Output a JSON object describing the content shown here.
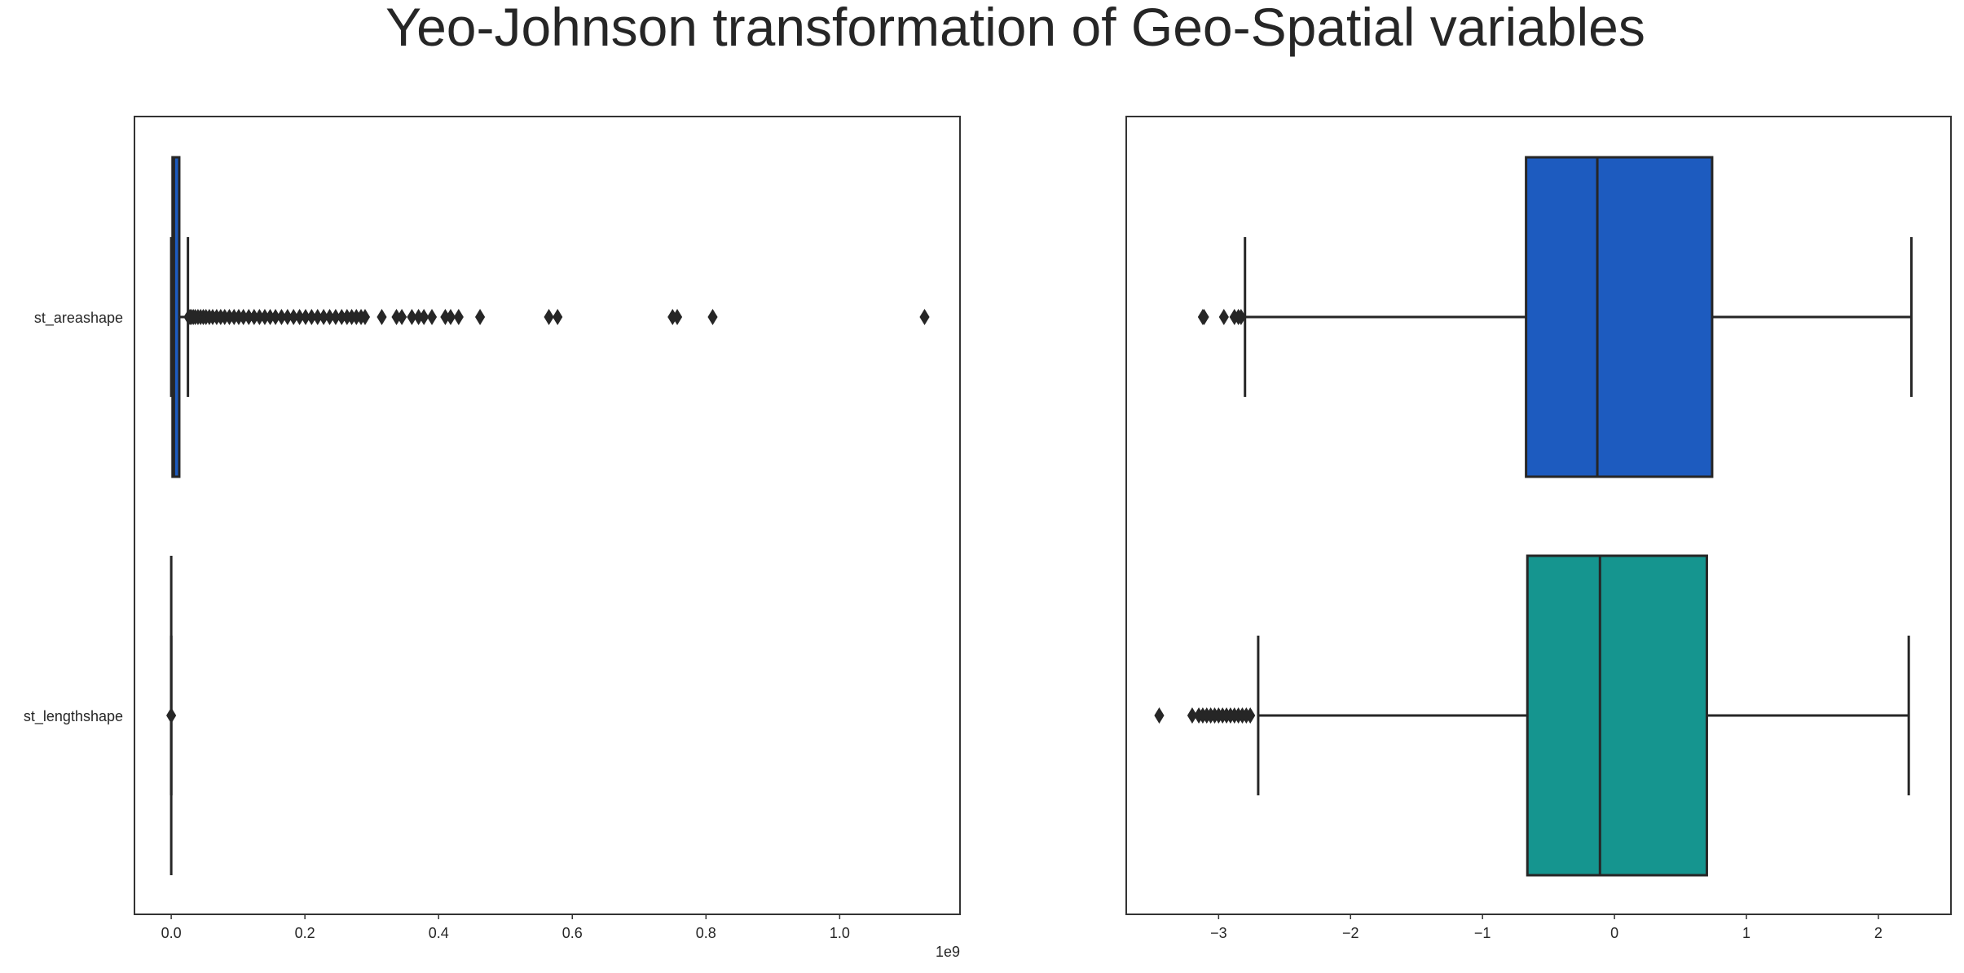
{
  "title": "Yeo-Johnson transformation of Geo-Spatial variables",
  "colors": {
    "box_blue": "#1d5bbf",
    "box_teal": "#15958f",
    "ink": "#262626",
    "frame": "#333333"
  },
  "chart_data": [
    {
      "type": "boxplot",
      "orientation": "horizontal",
      "categories": [
        "st_areashape",
        "st_lengthshape"
      ],
      "xlim": [
        -0.055,
        1.18
      ],
      "x_scale_label": "1e9",
      "x_scale_factor": 1000000000,
      "xticks": [
        0.0,
        0.2,
        0.4,
        0.6,
        0.8,
        1.0
      ],
      "xtick_labels": [
        "0.0",
        "0.2",
        "0.4",
        "0.6",
        "0.8",
        "1.0"
      ],
      "grid": false,
      "boxes": [
        {
          "name": "st_areashape",
          "color": "#1d5bbf",
          "whisker_low": 0.0,
          "q1": 0.002,
          "median": 0.004,
          "q3": 0.012,
          "whisker_high": 0.025,
          "outliers": [
            0.026,
            0.028,
            0.03,
            0.033,
            0.036,
            0.04,
            0.044,
            0.048,
            0.052,
            0.057,
            0.062,
            0.068,
            0.074,
            0.08,
            0.087,
            0.094,
            0.101,
            0.108,
            0.116,
            0.124,
            0.132,
            0.14,
            0.148,
            0.156,
            0.165,
            0.174,
            0.183,
            0.192,
            0.201,
            0.21,
            0.219,
            0.228,
            0.237,
            0.246,
            0.255,
            0.263,
            0.27,
            0.277,
            0.284,
            0.29,
            0.315,
            0.337,
            0.345,
            0.36,
            0.37,
            0.378,
            0.39,
            0.41,
            0.418,
            0.43,
            0.462,
            0.565,
            0.578,
            0.75,
            0.757,
            0.81,
            1.127
          ]
        },
        {
          "name": "st_lengthshape",
          "color": "#1d5bbf",
          "whisker_low": 0.0,
          "q1": 0.0,
          "median": 0.0,
          "q3": 0.0,
          "whisker_high": 0.0,
          "outliers": [
            0.0
          ]
        }
      ]
    },
    {
      "type": "boxplot",
      "orientation": "horizontal",
      "categories": [
        "",
        ""
      ],
      "xlim": [
        -3.7,
        2.55
      ],
      "xticks": [
        -3,
        -2,
        -1,
        0,
        1,
        2
      ],
      "xtick_labels": [
        "−3",
        "−2",
        "−1",
        "0",
        "1",
        "2"
      ],
      "grid": false,
      "boxes": [
        {
          "name": "st_areashape",
          "color": "#1d5bbf",
          "whisker_low": -2.8,
          "q1": -0.67,
          "median": -0.13,
          "q3": 0.74,
          "whisker_high": 2.25,
          "outliers": [
            -3.12,
            -3.11,
            -2.96,
            -2.88,
            -2.85,
            -2.83
          ]
        },
        {
          "name": "st_lengthshape",
          "color": "#15958f",
          "whisker_low": -2.7,
          "q1": -0.66,
          "median": -0.11,
          "q3": 0.7,
          "whisker_high": 2.23,
          "outliers": [
            -3.45,
            -3.2,
            -3.15,
            -3.12,
            -3.09,
            -3.06,
            -3.03,
            -3.0,
            -2.97,
            -2.94,
            -2.91,
            -2.88,
            -2.85,
            -2.82,
            -2.79,
            -2.76
          ]
        }
      ]
    }
  ]
}
